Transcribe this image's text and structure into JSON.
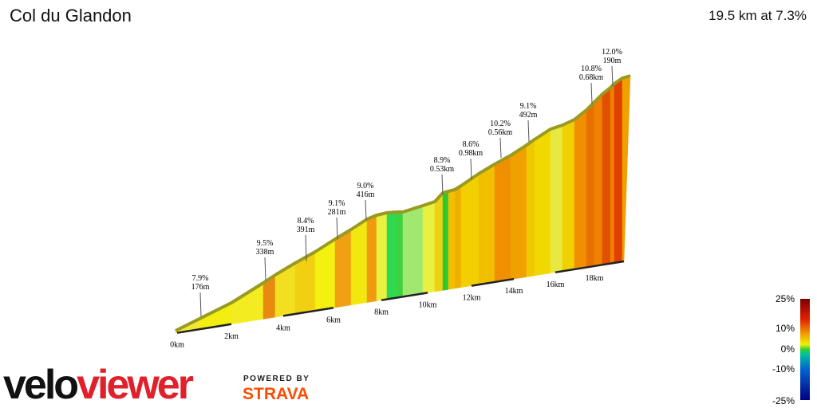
{
  "header": {
    "title": "Col du Glandon",
    "summary": "19.5 km at 7.3%"
  },
  "annotations": [
    {
      "grade": "7.9%",
      "length": "176m"
    },
    {
      "grade": "9.5%",
      "length": "338m"
    },
    {
      "grade": "8.4%",
      "length": "391m"
    },
    {
      "grade": "9.1%",
      "length": "281m"
    },
    {
      "grade": "9.0%",
      "length": "416m"
    },
    {
      "grade": "8.9%",
      "length": "0.53km"
    },
    {
      "grade": "8.6%",
      "length": "0.98km"
    },
    {
      "grade": "10.2%",
      "length": "0.56km"
    },
    {
      "grade": "9.1%",
      "length": "492m"
    },
    {
      "grade": "10.8%",
      "length": "0.68km"
    },
    {
      "grade": "12.0%",
      "length": "190m"
    }
  ],
  "distance_labels": [
    "0km",
    "2km",
    "4km",
    "6km",
    "8km",
    "10km",
    "12km",
    "14km",
    "16km",
    "18km"
  ],
  "legend": [
    "25%",
    "10%",
    "0%",
    "-10%",
    "-25%"
  ],
  "logo": {
    "brand_a": "velo",
    "brand_b": "viewer",
    "powered": "POWERED BY",
    "partner": "STRAVA"
  }
}
